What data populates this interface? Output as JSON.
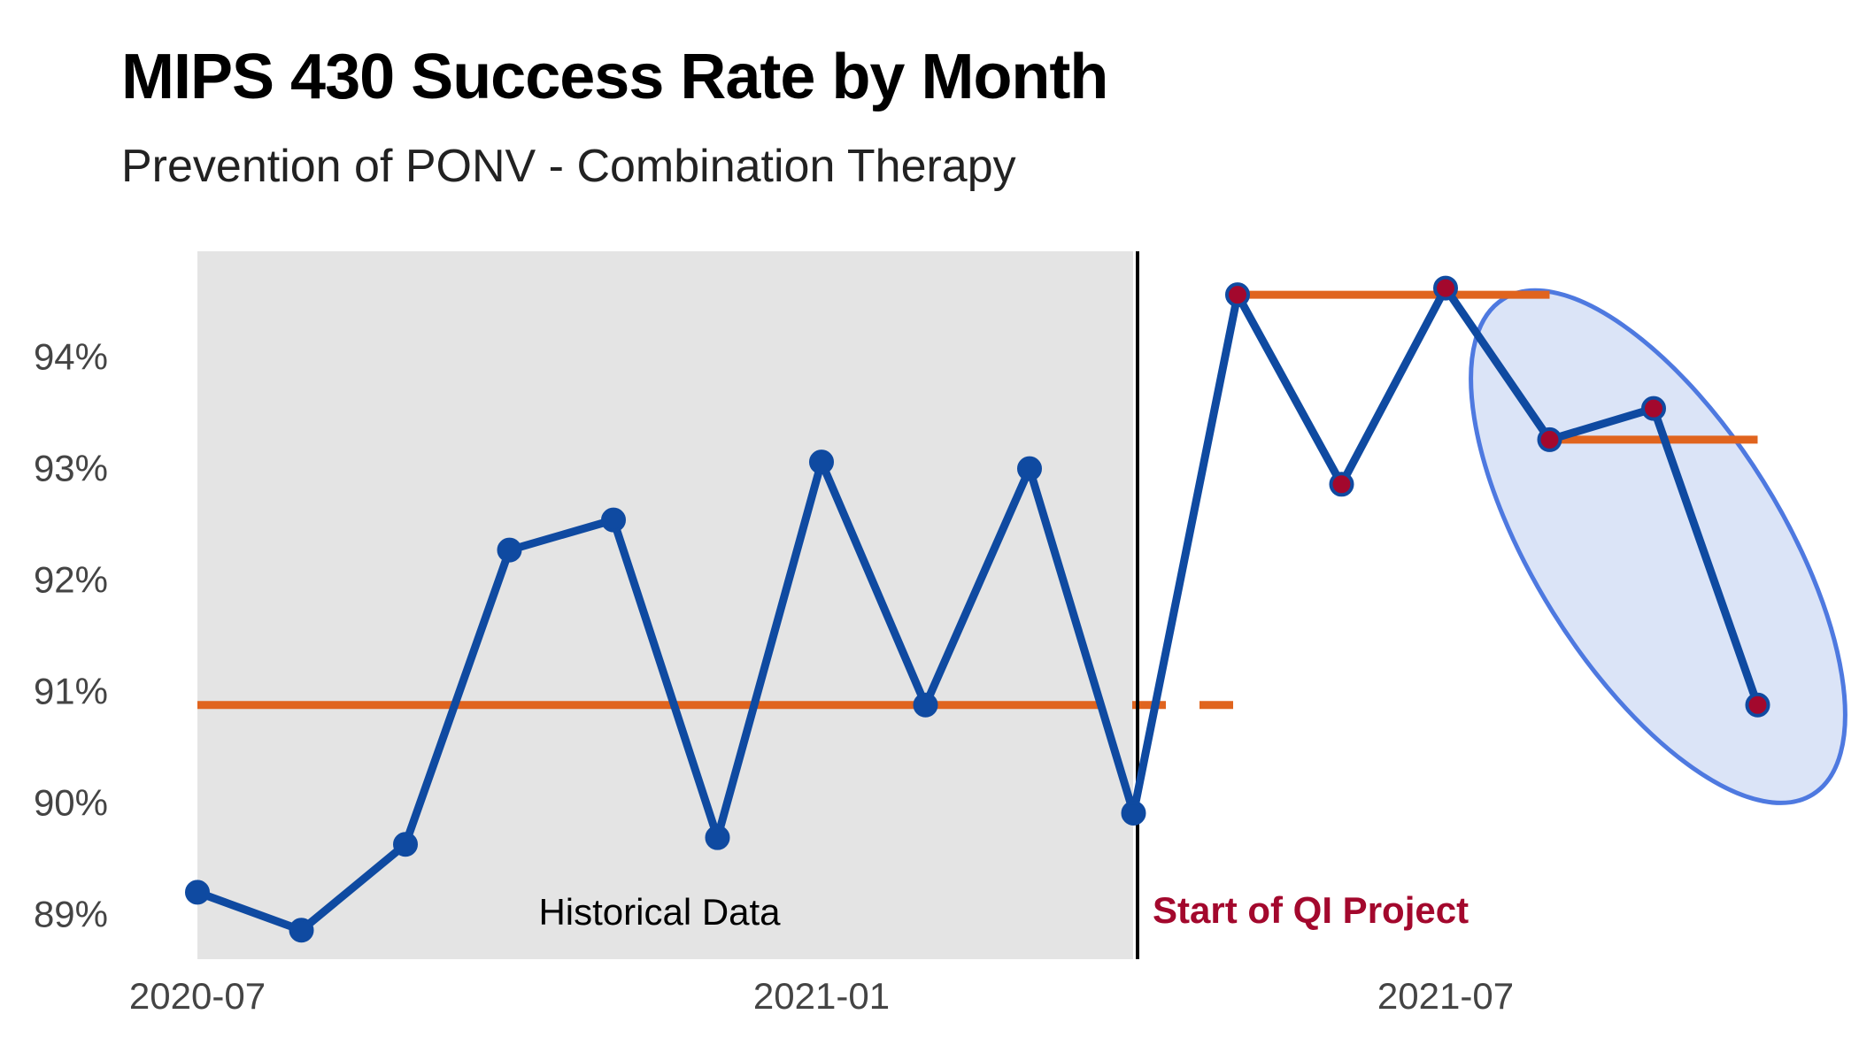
{
  "chart_data": {
    "type": "line",
    "title": "MIPS 430 Success Rate by Month",
    "subtitle": "Prevention of PONV - Combination Therapy",
    "xlabel": "",
    "ylabel": "",
    "x": [
      "2020-07",
      "2020-08",
      "2020-09",
      "2020-10",
      "2020-11",
      "2020-12",
      "2021-01",
      "2021-02",
      "2021-03",
      "2021-04",
      "2021-05",
      "2021-06",
      "2021-07",
      "2021-08",
      "2021-09",
      "2021-10"
    ],
    "x_tick_labels": [
      "2020-07",
      "2021-01",
      "2021-07"
    ],
    "y_tick_labels": [
      "89%",
      "90%",
      "91%",
      "92%",
      "93%",
      "94%"
    ],
    "ylim": [
      88.6,
      94.95
    ],
    "grid": false,
    "series": [
      {
        "values": [
          89.2,
          88.86,
          89.63,
          92.27,
          92.54,
          89.69,
          93.06,
          90.88,
          93.0,
          89.91,
          94.56,
          92.86,
          94.62,
          93.26,
          93.54,
          90.88
        ]
      }
    ],
    "median_lines": [
      {
        "from": "2020-07",
        "to": "2021-05",
        "value": 90.88
      },
      {
        "from": "2021-05",
        "to": "2021-08",
        "value": 94.56
      },
      {
        "from": "2021-08",
        "to": "2021-10",
        "value": 93.26
      }
    ],
    "annotations": {
      "historical_label": "Historical Data",
      "qi_start_label": "Start of QI Project",
      "qi_start_position": "between 2021-04 and 2021-05",
      "highlighted_points": "2021-08 to 2021-10"
    },
    "colors": {
      "line": "#0f4aa1",
      "median": "#e0641e",
      "historical_band": "#e4e4e4",
      "qi_point_fill": "#a3082d",
      "qi_label": "#a3082d",
      "highlight_fill": "#dbe4f7",
      "highlight_stroke": "#4e79e0"
    }
  }
}
